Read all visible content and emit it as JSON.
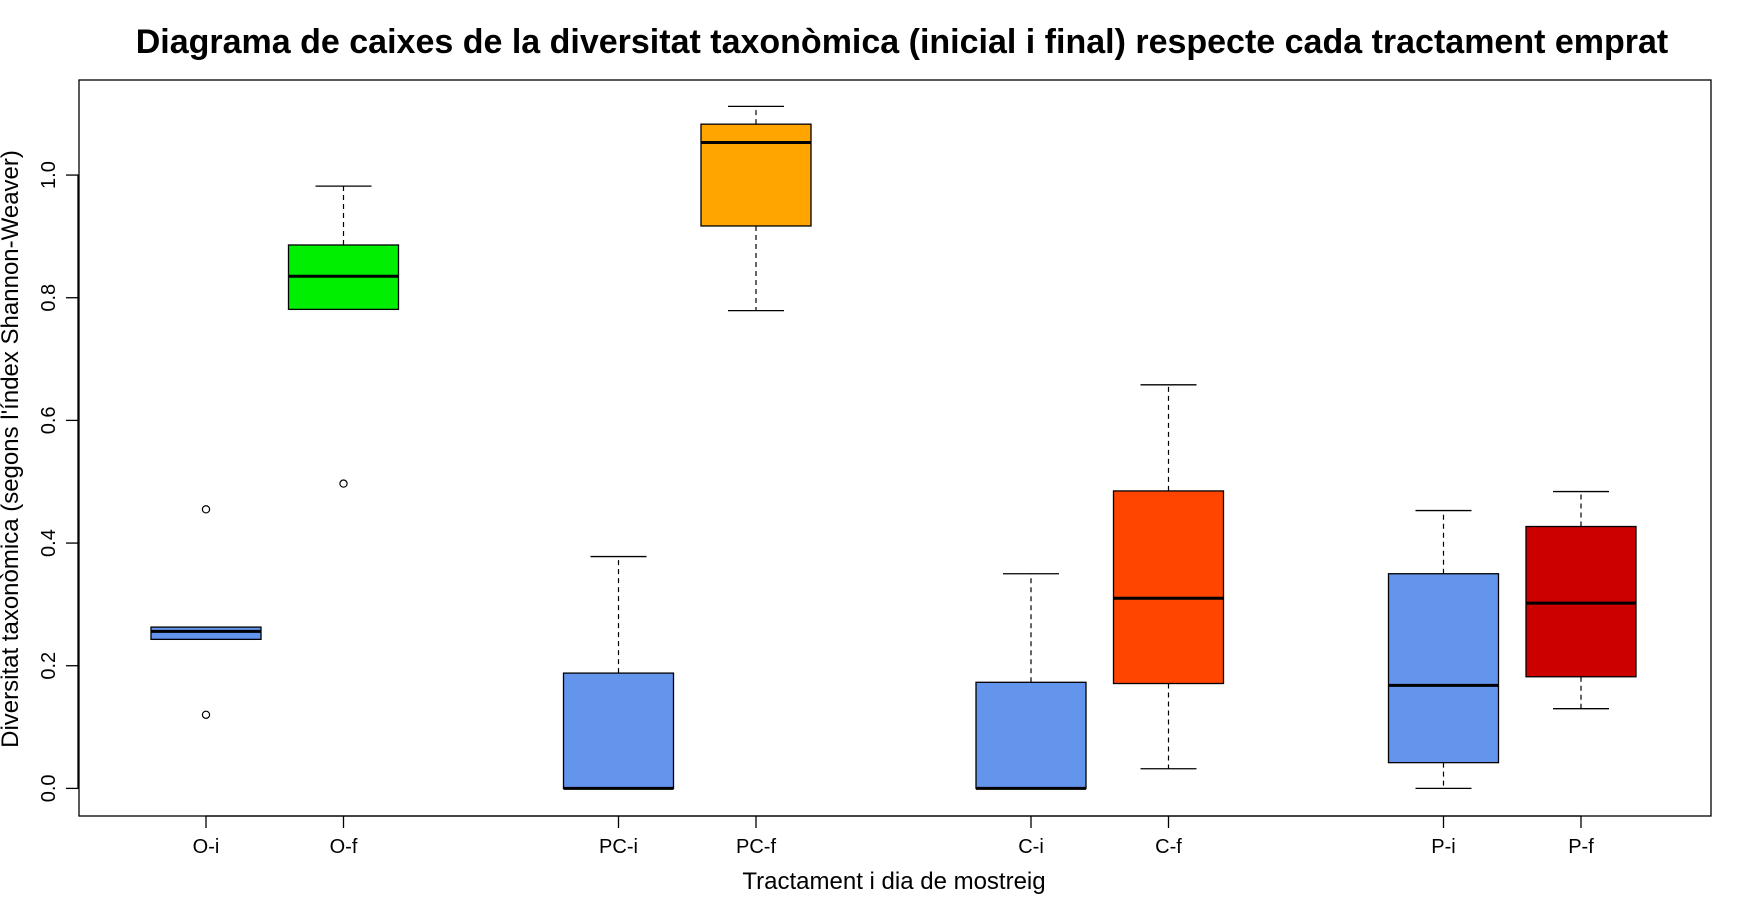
{
  "chart_data": {
    "type": "boxplot",
    "title": "Diagrama de caixes de la diversitat taxonòmica (inicial i final) respecte cada tractament emprat",
    "xlabel": "Tractament i dia de mostreig",
    "ylabel": "Diversitat taxonòmica (segons l'índex Shannon-Weaver)",
    "ylim": [
      -0.045,
      1.155
    ],
    "yticks": [
      0.0,
      0.2,
      0.4,
      0.6,
      0.8,
      1.0
    ],
    "ytick_labels": [
      "0.0",
      "0.2",
      "0.4",
      "0.6",
      "0.8",
      "1.0"
    ],
    "grid": false,
    "boxes": [
      {
        "label": "O-i",
        "x": 1,
        "color": "#6495ED",
        "whisker_low": 0.243,
        "q1": 0.243,
        "median": 0.256,
        "q3": 0.263,
        "whisker_high": 0.263,
        "outliers": [
          0.455,
          0.12
        ]
      },
      {
        "label": "O-f",
        "x": 2,
        "color": "#00EE00",
        "whisker_low": 0.781,
        "q1": 0.781,
        "median": 0.835,
        "q3": 0.886,
        "whisker_high": 0.982,
        "outliers": [
          0.497
        ]
      },
      {
        "label": "PC-i",
        "x": 4,
        "color": "#6495ED",
        "whisker_low": 0.0,
        "q1": 0.0,
        "median": 0.0,
        "q3": 0.188,
        "whisker_high": 0.378,
        "outliers": []
      },
      {
        "label": "PC-f",
        "x": 5,
        "color": "#FFA500",
        "whisker_low": 0.779,
        "q1": 0.917,
        "median": 1.053,
        "q3": 1.083,
        "whisker_high": 1.112,
        "outliers": []
      },
      {
        "label": "C-i",
        "x": 7,
        "color": "#6495ED",
        "whisker_low": 0.0,
        "q1": 0.0,
        "median": 0.0,
        "q3": 0.173,
        "whisker_high": 0.35,
        "outliers": []
      },
      {
        "label": "C-f",
        "x": 8,
        "color": "#FF4500",
        "whisker_low": 0.032,
        "q1": 0.171,
        "median": 0.31,
        "q3": 0.485,
        "whisker_high": 0.658,
        "outliers": []
      },
      {
        "label": "P-i",
        "x": 10,
        "color": "#6495ED",
        "whisker_low": 0.0,
        "q1": 0.042,
        "median": 0.168,
        "q3": 0.35,
        "whisker_high": 0.453,
        "outliers": []
      },
      {
        "label": "P-f",
        "x": 11,
        "color": "#CD0000",
        "whisker_low": 0.13,
        "q1": 0.182,
        "median": 0.302,
        "q3": 0.427,
        "whisker_high": 0.484,
        "outliers": []
      }
    ]
  }
}
